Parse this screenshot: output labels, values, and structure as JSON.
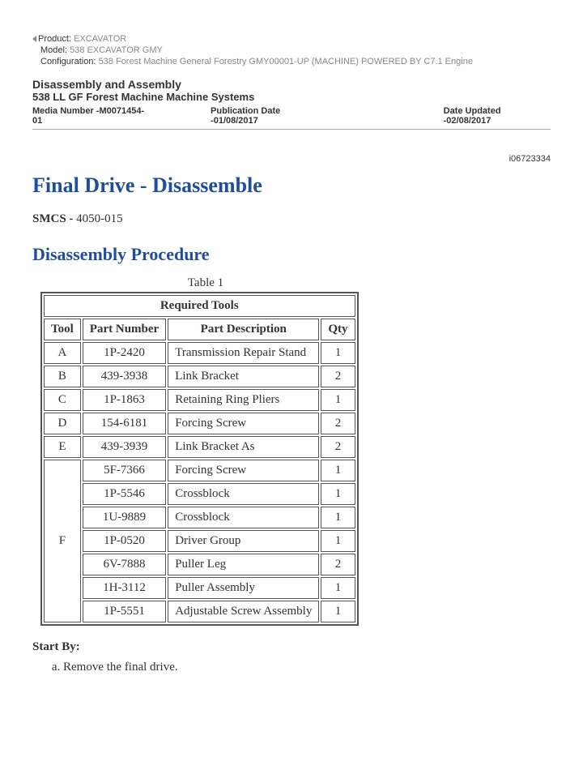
{
  "meta": {
    "product_label": "Product:",
    "product_value": "EXCAVATOR",
    "model_label": "Model:",
    "model_value": "538 EXCAVATOR GMY",
    "config_label": "Configuration:",
    "config_value": "538 Forest Machine General Forestry GMY00001-UP (MACHINE) POWERED BY C7.1 Engine"
  },
  "header": {
    "section_title": "Disassembly and Assembly",
    "subtitle": "538 LL GF Forest Machine Machine Systems",
    "media_number": "Media Number -M0071454-01",
    "pub_date": "Publication Date -01/08/2017",
    "date_updated": "Date Updated -02/08/2017",
    "doc_id": "i06723334"
  },
  "proc": {
    "title": "Final Drive - Disassemble",
    "smcs_label": "SMCS -",
    "smcs_value": "4050-015",
    "subtitle": "Disassembly Procedure"
  },
  "table": {
    "caption": "Table 1",
    "header_span": "Required Tools",
    "columns": [
      "Tool",
      "Part Number",
      "Part Description",
      "Qty"
    ],
    "groups": [
      {
        "tool": "A",
        "rows": [
          {
            "pn": "1P-2420",
            "desc": "Transmission Repair Stand",
            "qty": "1"
          }
        ]
      },
      {
        "tool": "B",
        "rows": [
          {
            "pn": "439-3938",
            "desc": "Link Bracket",
            "qty": "2"
          }
        ]
      },
      {
        "tool": "C",
        "rows": [
          {
            "pn": "1P-1863",
            "desc": "Retaining Ring Pliers",
            "qty": "1"
          }
        ]
      },
      {
        "tool": "D",
        "rows": [
          {
            "pn": "154-6181",
            "desc": "Forcing Screw",
            "qty": "2"
          }
        ]
      },
      {
        "tool": "E",
        "rows": [
          {
            "pn": "439-3939",
            "desc": "Link Bracket As",
            "qty": "2"
          }
        ]
      },
      {
        "tool": "F",
        "rows": [
          {
            "pn": "5F-7366",
            "desc": "Forcing Screw",
            "qty": "1"
          },
          {
            "pn": "1P-5546",
            "desc": "Crossblock",
            "qty": "1"
          },
          {
            "pn": "1U-9889",
            "desc": "Crossblock",
            "qty": "1"
          },
          {
            "pn": "1P-0520",
            "desc": "Driver Group",
            "qty": "1"
          },
          {
            "pn": "6V-7888",
            "desc": "Puller Leg",
            "qty": "2"
          },
          {
            "pn": "1H-3112",
            "desc": "Puller Assembly",
            "qty": "1"
          },
          {
            "pn": "1P-5551",
            "desc": "Adjustable Screw Assembly",
            "qty": "1"
          }
        ]
      }
    ]
  },
  "start_by": {
    "label": "Start By:",
    "steps": [
      "Remove the final drive."
    ]
  }
}
